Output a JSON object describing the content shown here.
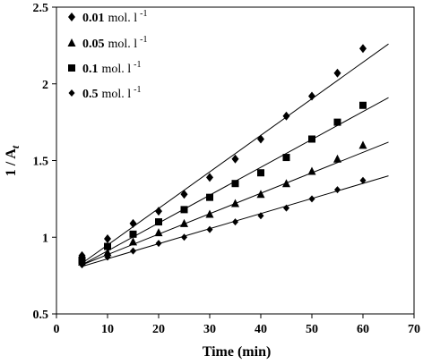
{
  "chart_data": {
    "type": "scatter",
    "title": "",
    "xlabel": "Time (min)",
    "ylabel_main": "1 / A",
    "ylabel_sub": "t",
    "xlim": [
      0,
      70
    ],
    "ylim": [
      0.5,
      2.5
    ],
    "xticks": [
      0,
      10,
      20,
      30,
      40,
      50,
      60,
      70
    ],
    "yticks": [
      0.5,
      1,
      1.5,
      2,
      2.5
    ],
    "xtick_labels": [
      "0",
      "10",
      "20",
      "30",
      "40",
      "50",
      "60",
      "70"
    ],
    "ytick_labels": [
      "0.5",
      "1",
      "1.5",
      "2",
      "2.5"
    ],
    "grid": false,
    "legend_position": "top-left",
    "series": [
      {
        "name_value": "0.01",
        "name_unit": "mol. l",
        "name_exp": "-1",
        "marker": "diamond",
        "x": [
          5,
          10,
          15,
          20,
          25,
          30,
          35,
          40,
          45,
          50,
          55,
          60
        ],
        "y": [
          0.88,
          0.99,
          1.09,
          1.17,
          1.28,
          1.39,
          1.51,
          1.64,
          1.79,
          1.92,
          2.07,
          2.23
        ],
        "fit": {
          "x": [
            5,
            65
          ],
          "y": [
            0.83,
            2.26
          ]
        }
      },
      {
        "name_value": "0.05",
        "name_unit": "mol. l",
        "name_exp": "-1",
        "marker": "triangle",
        "x": [
          5,
          10,
          15,
          20,
          25,
          30,
          35,
          40,
          45,
          50,
          55,
          60
        ],
        "y": [
          0.84,
          0.9,
          0.97,
          1.03,
          1.09,
          1.15,
          1.22,
          1.28,
          1.35,
          1.43,
          1.51,
          1.6
        ],
        "fit": {
          "x": [
            5,
            65
          ],
          "y": [
            0.82,
            1.62
          ]
        }
      },
      {
        "name_value": "0.1",
        "name_unit": "mol. l",
        "name_exp": "-1",
        "marker": "square",
        "x": [
          5,
          10,
          15,
          20,
          25,
          30,
          35,
          40,
          45,
          50,
          55,
          60
        ],
        "y": [
          0.85,
          0.94,
          1.02,
          1.1,
          1.18,
          1.26,
          1.35,
          1.42,
          1.52,
          1.64,
          1.75,
          1.86
        ],
        "fit": {
          "x": [
            5,
            65
          ],
          "y": [
            0.82,
            1.91
          ]
        }
      },
      {
        "name_value": "0.5",
        "name_unit": "mol. l",
        "name_exp": "-1",
        "marker": "diamond-small",
        "x": [
          5,
          10,
          15,
          20,
          25,
          30,
          35,
          40,
          45,
          50,
          55,
          60
        ],
        "y": [
          0.82,
          0.87,
          0.91,
          0.96,
          1.0,
          1.05,
          1.1,
          1.14,
          1.19,
          1.25,
          1.31,
          1.37
        ],
        "fit": {
          "x": [
            5,
            65
          ],
          "y": [
            0.81,
            1.4
          ]
        }
      }
    ]
  }
}
